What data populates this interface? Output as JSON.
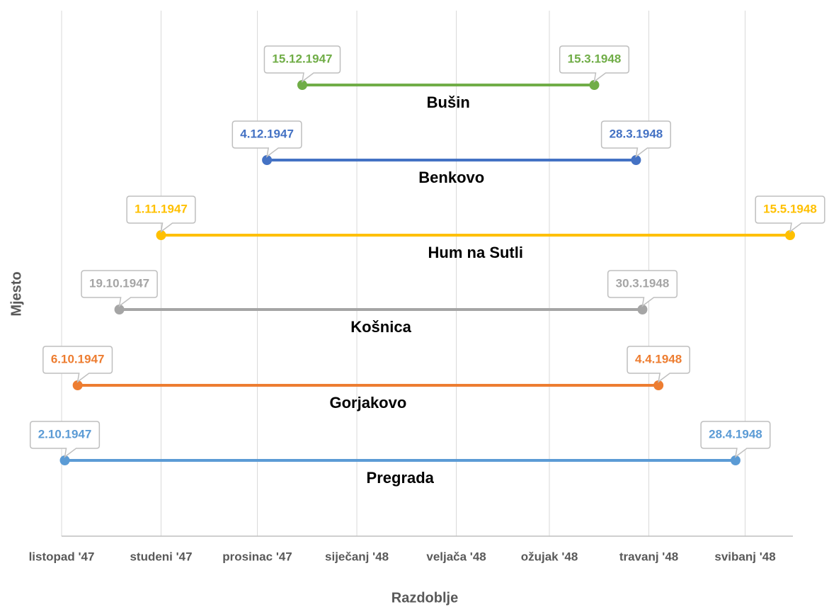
{
  "chart_data": {
    "type": "dumbbell",
    "xlabel": "Razdoblje",
    "ylabel": "Mjesto",
    "xlim": [
      "1.10.1947",
      "15.5.1948"
    ],
    "xticks": [
      {
        "value": "1.10.1947",
        "label": "listopad '47"
      },
      {
        "value": "1.11.1947",
        "label": "studeni '47"
      },
      {
        "value": "1.12.1947",
        "label": "prosinac '47"
      },
      {
        "value": "1.1.1948",
        "label": "siječanj '48"
      },
      {
        "value": "1.2.1948",
        "label": "veljača '48"
      },
      {
        "value": "1.3.1948",
        "label": "ožujak '48"
      },
      {
        "value": "1.4.1948",
        "label": "travanj '48"
      },
      {
        "value": "1.5.1948",
        "label": "svibanj '48"
      }
    ],
    "grid": true,
    "series": [
      {
        "name": "Bušin",
        "color": "#70ad47",
        "values": [
          "15.12.1947",
          "15.3.1948"
        ]
      },
      {
        "name": "Benkovo",
        "color": "#4472c4",
        "values": [
          "4.12.1947",
          "28.3.1948"
        ]
      },
      {
        "name": "Hum na Sutli",
        "color": "#ffc000",
        "values": [
          "1.11.1947",
          "15.5.1948"
        ]
      },
      {
        "name": "Košnica",
        "color": "#a5a5a5",
        "values": [
          "19.10.1947",
          "30.3.1948"
        ]
      },
      {
        "name": "Gorjakovo",
        "color": "#ed7d31",
        "values": [
          "6.10.1947",
          "4.4.1948"
        ]
      },
      {
        "name": "Pregrada",
        "color": "#5b9bd5",
        "values": [
          "2.10.1947",
          "28.4.1948"
        ]
      }
    ]
  }
}
